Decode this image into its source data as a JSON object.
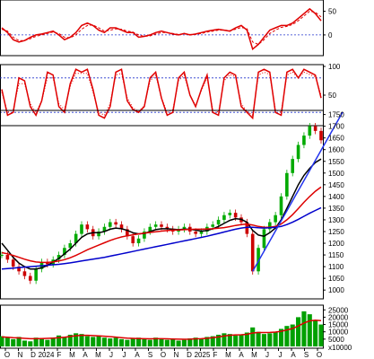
{
  "chart_data": {
    "type": "line",
    "x_tick_labels": [
      "O",
      "N",
      "D",
      "2024",
      "F",
      "M",
      "A",
      "M",
      "J",
      "J",
      "A",
      "S",
      "O",
      "N",
      "D",
      "2025",
      "F",
      "M",
      "A",
      "M",
      "J",
      "J",
      "A",
      "S",
      "O"
    ],
    "panels": [
      {
        "id": "macd",
        "y_ticks": [
          "50",
          "0"
        ],
        "ylim": [
          -40,
          70
        ],
        "reference_lines": [
          0
        ],
        "series": [
          {
            "color": "#e00000",
            "style": "solid",
            "values": [
              15,
              5,
              -10,
              -15,
              -12,
              -5,
              0,
              2,
              5,
              8,
              0,
              -10,
              -5,
              5,
              20,
              25,
              20,
              10,
              5,
              15,
              15,
              10,
              5,
              5,
              -5,
              -3,
              0,
              5,
              8,
              5,
              2,
              0,
              3,
              0,
              2,
              5,
              8,
              10,
              12,
              10,
              8,
              15,
              20,
              10,
              -30,
              -20,
              -5,
              10,
              15,
              20,
              20,
              25,
              35,
              45,
              55,
              45,
              30
            ]
          },
          {
            "color": "#e00000",
            "style": "dashed",
            "values": [
              12,
              8,
              -5,
              -12,
              -12,
              -8,
              -3,
              0,
              3,
              6,
              3,
              -5,
              -6,
              0,
              12,
              20,
              21,
              15,
              8,
              10,
              13,
              12,
              8,
              6,
              0,
              -3,
              -2,
              2,
              5,
              5,
              3,
              1,
              2,
              1,
              1,
              3,
              6,
              8,
              10,
              10,
              9,
              12,
              16,
              13,
              -15,
              -20,
              -10,
              3,
              10,
              16,
              18,
              22,
              30,
              40,
              50,
              48,
              38
            ]
          }
        ]
      },
      {
        "id": "rsi",
        "y_ticks": [
          "100",
          "50"
        ],
        "ylim": [
          0,
          100
        ],
        "reference_lines": [
          80,
          20
        ],
        "series": [
          {
            "color": "#e00000",
            "style": "solid",
            "values": [
              60,
              15,
              20,
              80,
              75,
              30,
              15,
              40,
              90,
              85,
              30,
              20,
              70,
              95,
              90,
              95,
              60,
              15,
              10,
              30,
              90,
              95,
              40,
              25,
              20,
              30,
              80,
              90,
              45,
              15,
              20,
              80,
              90,
              50,
              30,
              60,
              85,
              20,
              15,
              80,
              90,
              85,
              30,
              20,
              10,
              90,
              95,
              90,
              20,
              15,
              90,
              95,
              80,
              95,
              90,
              85,
              45
            ]
          },
          {
            "color": "#e00000",
            "style": "dotted",
            "values": [
              55,
              20,
              25,
              70,
              70,
              35,
              20,
              40,
              80,
              80,
              35,
              25,
              65,
              88,
              88,
              88,
              55,
              20,
              15,
              35,
              85,
              88,
              45,
              28,
              22,
              32,
              75,
              85,
              45,
              20,
              25,
              75,
              85,
              50,
              32,
              58,
              80,
              25,
              20,
              75,
              86,
              82,
              35,
              22,
              15,
              85,
              90,
              86,
              25,
              20,
              85,
              90,
              80,
              90,
              86,
              82,
              50
            ]
          }
        ]
      },
      {
        "id": "price",
        "y_ticks": [
          "1750",
          "1700",
          "1650",
          "1600",
          "1550",
          "1500",
          "1450",
          "1400",
          "1350",
          "1300",
          "1250",
          "1200",
          "1150",
          "1100",
          "1050",
          "1000"
        ],
        "ylim": [
          970,
          1760
        ],
        "series": [
          {
            "color": "#00aa00",
            "style": "candles",
            "values": [
              1150,
              1130,
              1100,
              1080,
              1060,
              1040,
              1090,
              1120,
              1110,
              1130,
              1150,
              1180,
              1200,
              1240,
              1280,
              1260,
              1230,
              1250,
              1270,
              1290,
              1280,
              1260,
              1230,
              1200,
              1220,
              1250,
              1270,
              1280,
              1270,
              1260,
              1250,
              1260,
              1270,
              1250,
              1240,
              1250,
              1270,
              1280,
              1300,
              1320,
              1330,
              1310,
              1290,
              1240,
              1080,
              1180,
              1260,
              1290,
              1320,
              1400,
              1500,
              1560,
              1620,
              1660,
              1700,
              1680,
              1640
            ]
          },
          {
            "color": "#000000",
            "style": "solid",
            "values": [
              1200,
              1170,
              1140,
              1115,
              1100,
              1090,
              1090,
              1095,
              1105,
              1120,
              1135,
              1155,
              1175,
              1200,
              1225,
              1240,
              1245,
              1245,
              1250,
              1260,
              1265,
              1262,
              1255,
              1245,
              1240,
              1242,
              1250,
              1258,
              1262,
              1262,
              1260,
              1258,
              1260,
              1260,
              1256,
              1252,
              1254,
              1262,
              1272,
              1285,
              1298,
              1305,
              1302,
              1290,
              1255,
              1235,
              1230,
              1245,
              1265,
              1300,
              1350,
              1400,
              1450,
              1490,
              1520,
              1545,
              1560
            ]
          },
          {
            "color": "#dd0000",
            "style": "solid",
            "values": [
              1160,
              1155,
              1148,
              1140,
              1132,
              1125,
              1120,
              1118,
              1118,
              1120,
              1124,
              1130,
              1138,
              1148,
              1160,
              1172,
              1182,
              1192,
              1202,
              1212,
              1220,
              1227,
              1232,
              1236,
              1240,
              1243,
              1246,
              1249,
              1252,
              1254,
              1256,
              1257,
              1258,
              1259,
              1260,
              1260,
              1261,
              1262,
              1264,
              1267,
              1271,
              1276,
              1280,
              1282,
              1278,
              1272,
              1268,
              1268,
              1272,
              1282,
              1300,
              1322,
              1348,
              1375,
              1400,
              1422,
              1440
            ]
          },
          {
            "color": "#0000cc",
            "style": "solid",
            "values": [
              1090,
              1092,
              1094,
              1096,
              1098,
              1100,
              1102,
              1104,
              1106,
              1108,
              1110,
              1113,
              1116,
              1120,
              1124,
              1128,
              1132,
              1136,
              1140,
              1145,
              1150,
              1155,
              1160,
              1165,
              1170,
              1175,
              1180,
              1185,
              1190,
              1195,
              1200,
              1205,
              1210,
              1215,
              1220,
              1225,
              1230,
              1236,
              1242,
              1248,
              1254,
              1260,
              1265,
              1268,
              1268,
              1266,
              1265,
              1266,
              1268,
              1272,
              1280,
              1290,
              1302,
              1315,
              1328,
              1340,
              1352
            ]
          }
        ],
        "trendlines": [
          {
            "color": "#2233ee",
            "from": [
              44,
              1080
            ],
            "to": [
              60,
              1760
            ]
          }
        ]
      },
      {
        "id": "volume",
        "y_ticks": [
          "25000",
          "20000",
          "15000",
          "10000",
          "5000"
        ],
        "unit_label": "x10000",
        "ylim": [
          0,
          27000
        ],
        "bar_color": "#00a000",
        "values": [
          7000,
          6000,
          5000,
          6500,
          4000,
          3500,
          6000,
          5500,
          4500,
          6000,
          7500,
          6500,
          8000,
          9000,
          8500,
          7000,
          6500,
          7500,
          6000,
          5500,
          6000,
          5000,
          4500,
          5500,
          6000,
          5000,
          4500,
          6000,
          5500,
          4500,
          5000,
          4000,
          4500,
          5500,
          6000,
          5000,
          6500,
          7000,
          8000,
          9000,
          8500,
          7500,
          8000,
          9500,
          13000,
          10000,
          8500,
          9000,
          10000,
          12000,
          14000,
          15000,
          20000,
          24000,
          22000,
          18000,
          15000
        ],
        "ma_series": {
          "color": "#dd0000",
          "values": [
            6500,
            6300,
            6000,
            5800,
            5500,
            5300,
            5300,
            5400,
            5500,
            5700,
            6000,
            6300,
            6800,
            7300,
            7600,
            7600,
            7400,
            7200,
            7000,
            6700,
            6400,
            6000,
            5700,
            5500,
            5400,
            5300,
            5200,
            5300,
            5300,
            5200,
            5100,
            5000,
            4900,
            5000,
            5200,
            5300,
            5600,
            6000,
            6500,
            7100,
            7600,
            7900,
            8000,
            8300,
            9200,
            9500,
            9500,
            9600,
            9800,
            10400,
            11300,
            12300,
            14000,
            16000,
            17500,
            18000,
            17600
          ]
        }
      }
    ]
  }
}
